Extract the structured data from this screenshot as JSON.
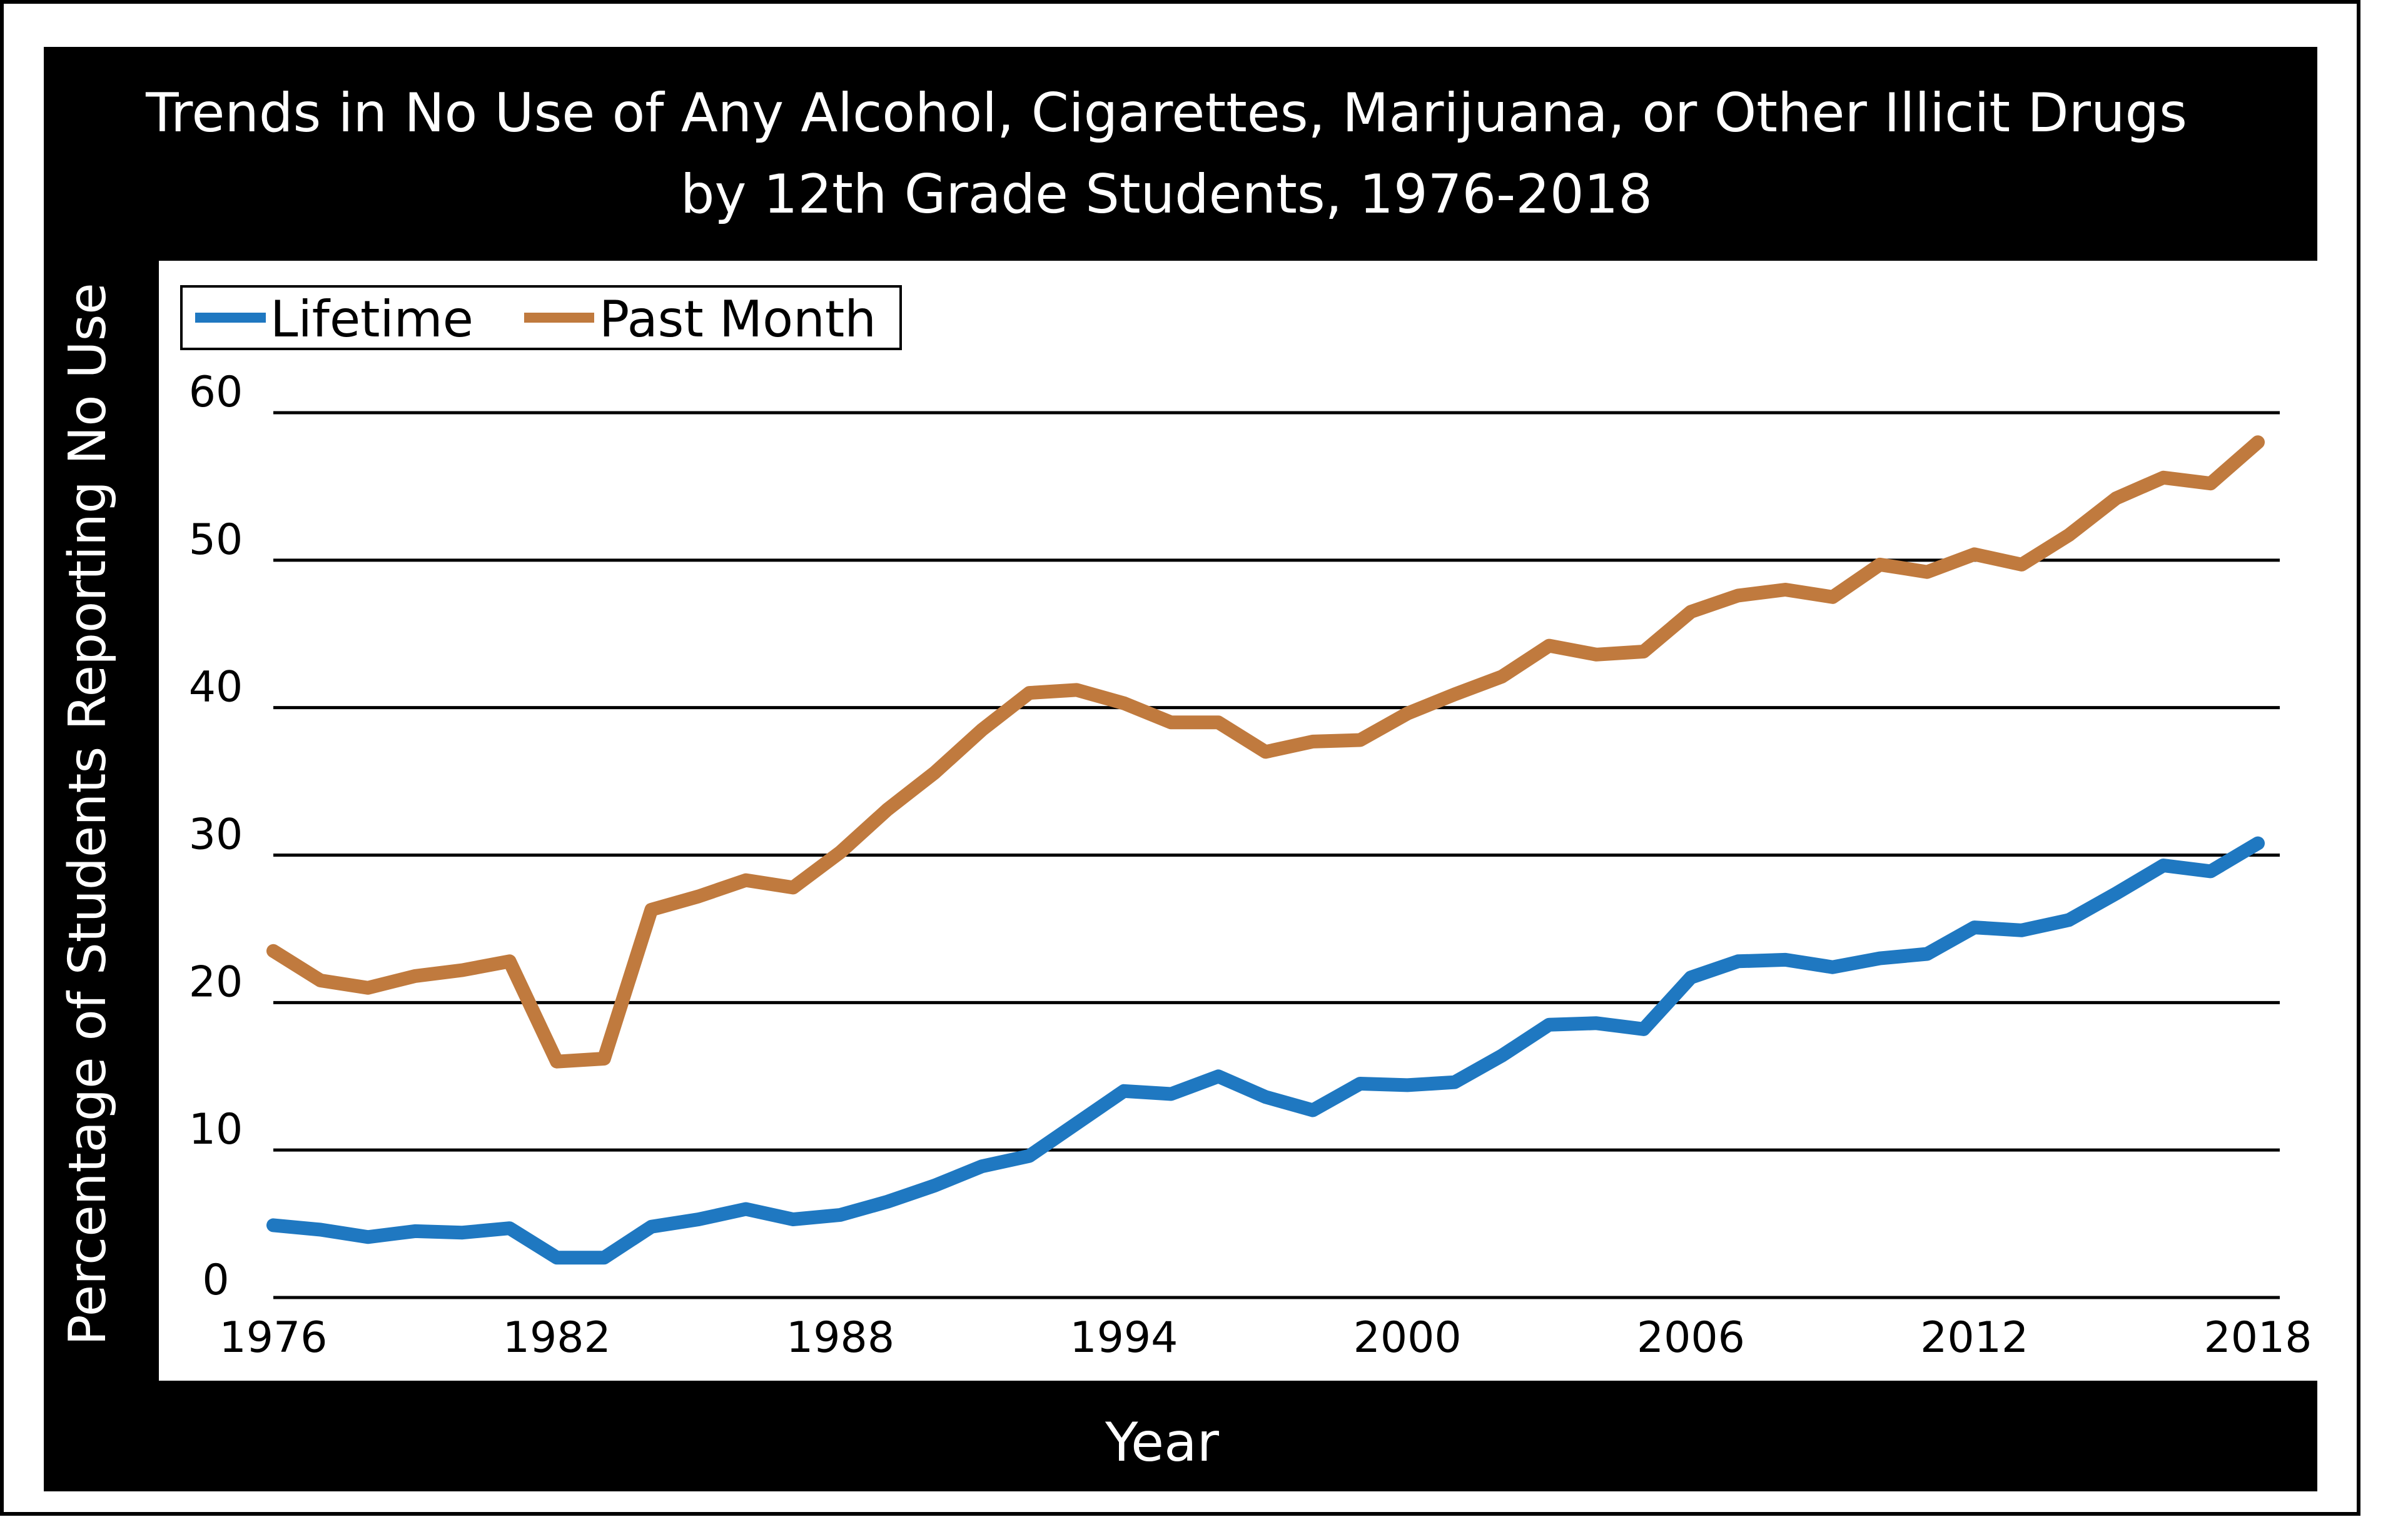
{
  "chart_data": {
    "type": "line",
    "title_lines": [
      "Trends in No Use of Any Alcohol, Cigarettes, Marijuana, or Other Illicit Drugs",
      "by 12th Grade Students, 1976-2018"
    ],
    "xlabel": "Year",
    "ylabel": "Percentage of Students Reporting No Use",
    "x": [
      1976,
      1977,
      1978,
      1979,
      1980,
      1981,
      1982,
      1983,
      1984,
      1985,
      1986,
      1987,
      1988,
      1989,
      1990,
      1991,
      1992,
      1993,
      1994,
      1995,
      1996,
      1997,
      1998,
      1999,
      2000,
      2001,
      2002,
      2003,
      2004,
      2005,
      2006,
      2007,
      2008,
      2009,
      2010,
      2011,
      2012,
      2013,
      2014,
      2015,
      2016,
      2017,
      2018
    ],
    "x_ticks": [
      1976,
      1982,
      1988,
      1994,
      2000,
      2006,
      2012,
      2018
    ],
    "x_tick_labels": [
      "1976",
      "1982",
      "1988",
      "1994",
      "2000",
      "2006",
      "2012",
      "2018"
    ],
    "xlim": [
      1976,
      2018
    ],
    "y_ticks": [
      0,
      10,
      20,
      30,
      40,
      50,
      60
    ],
    "y_tick_labels": [
      "0",
      "10",
      "20",
      "30",
      "40",
      "50",
      "60"
    ],
    "ylim": [
      0,
      60
    ],
    "grid": "horizontal",
    "legend_position": "top-left",
    "series": [
      {
        "name": "Lifetime",
        "color": "#1f78c1",
        "values": [
          4.9,
          4.6,
          4.1,
          4.5,
          4.4,
          4.7,
          2.7,
          2.7,
          4.8,
          5.3,
          6.0,
          5.3,
          5.6,
          6.5,
          7.6,
          8.9,
          9.6,
          11.8,
          14.0,
          13.8,
          15.0,
          13.6,
          12.7,
          14.5,
          14.4,
          14.6,
          16.4,
          18.5,
          18.6,
          18.2,
          21.7,
          22.8,
          22.9,
          22.4,
          23.0,
          23.3,
          25.1,
          24.9,
          25.6,
          27.4,
          29.3,
          28.9,
          30.8
        ]
      },
      {
        "name": "Past Month",
        "color": "#c07a3e",
        "values": [
          23.5,
          21.5,
          21.0,
          21.8,
          22.2,
          22.8,
          16.0,
          16.2,
          26.3,
          27.2,
          28.3,
          27.8,
          30.2,
          33.1,
          35.6,
          38.5,
          41.0,
          41.2,
          40.3,
          39.0,
          39.0,
          37.0,
          37.7,
          37.8,
          39.6,
          40.9,
          42.1,
          44.2,
          43.6,
          43.8,
          46.5,
          47.6,
          48.0,
          47.5,
          49.7,
          49.2,
          50.4,
          49.7,
          51.7,
          54.2,
          55.6,
          55.2,
          58.0
        ]
      }
    ]
  }
}
